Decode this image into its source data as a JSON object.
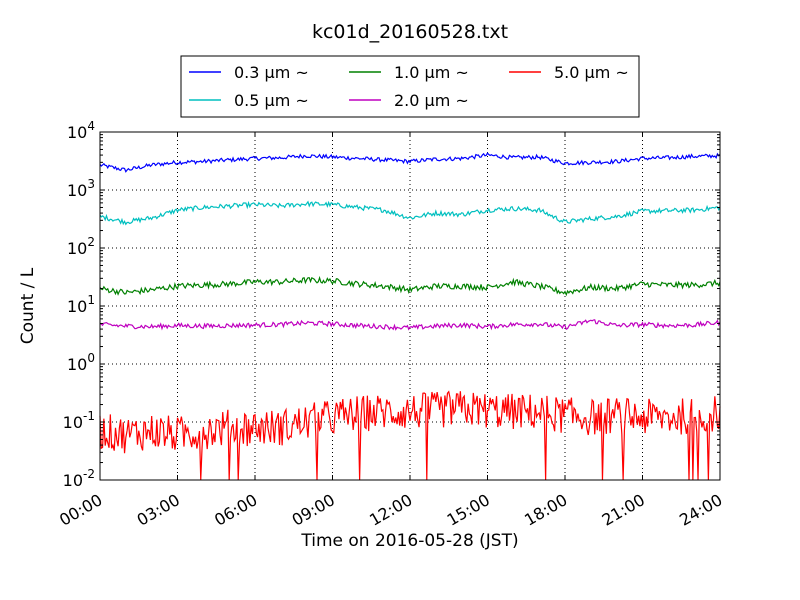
{
  "chart_data": {
    "type": "line",
    "title": "kc01d_20160528.txt",
    "xlabel": "Time on 2016-05-28 (JST)",
    "ylabel": "Count / L",
    "yscale": "log",
    "ylim": [
      0.01,
      10000
    ],
    "xlim": [
      "00:00",
      "24:00"
    ],
    "grid": true,
    "legend_position": "top",
    "x_ticks": [
      "00:00",
      "03:00",
      "06:00",
      "09:00",
      "12:00",
      "15:00",
      "18:00",
      "21:00",
      "24:00"
    ],
    "x_hours": [
      0,
      3,
      6,
      9,
      12,
      15,
      18,
      21,
      24
    ],
    "y_ticks": [
      {
        "value": 0.01,
        "base": "10",
        "exp": "-2"
      },
      {
        "value": 0.1,
        "base": "10",
        "exp": "-1"
      },
      {
        "value": 1,
        "base": "10",
        "exp": "0"
      },
      {
        "value": 10,
        "base": "10",
        "exp": "1"
      },
      {
        "value": 100,
        "base": "10",
        "exp": "2"
      },
      {
        "value": 1000,
        "base": "10",
        "exp": "3"
      },
      {
        "value": 10000,
        "base": "10",
        "exp": "4"
      }
    ],
    "series": [
      {
        "name": "0.3 μm ~",
        "color": "#0000ff",
        "x": [
          0,
          1,
          2,
          3,
          4,
          5,
          6,
          7,
          8,
          9,
          10,
          11,
          12,
          13,
          14,
          15,
          16,
          17,
          18,
          19,
          20,
          21,
          22,
          23,
          24
        ],
        "y": [
          2700,
          2200,
          2700,
          3000,
          3100,
          3300,
          3500,
          3600,
          3900,
          3700,
          3500,
          3300,
          3100,
          3400,
          3500,
          4000,
          3600,
          3700,
          2900,
          3000,
          3100,
          3500,
          3600,
          3800,
          3900
        ]
      },
      {
        "name": "0.5 μm ~",
        "color": "#00bfbf",
        "x": [
          0,
          1,
          2,
          3,
          4,
          5,
          6,
          7,
          8,
          9,
          10,
          11,
          12,
          13,
          14,
          15,
          16,
          17,
          18,
          19,
          20,
          21,
          22,
          23,
          24
        ],
        "y": [
          350,
          280,
          330,
          450,
          500,
          530,
          560,
          530,
          580,
          560,
          500,
          450,
          330,
          400,
          380,
          450,
          480,
          450,
          280,
          320,
          350,
          430,
          440,
          450,
          500
        ]
      },
      {
        "name": "1.0 μm ~",
        "color": "#008000",
        "x": [
          0,
          1,
          2,
          3,
          4,
          5,
          6,
          7,
          8,
          9,
          10,
          11,
          12,
          13,
          14,
          15,
          16,
          17,
          18,
          19,
          20,
          21,
          22,
          23,
          24
        ],
        "y": [
          20,
          17,
          19,
          22,
          23,
          24,
          26,
          26,
          28,
          27,
          24,
          22,
          19,
          22,
          22,
          21,
          26,
          22,
          17,
          21,
          20,
          24,
          23,
          23,
          25
        ]
      },
      {
        "name": "2.0 μm ~",
        "color": "#bf00bf",
        "x": [
          0,
          1,
          2,
          3,
          4,
          5,
          6,
          7,
          8,
          9,
          10,
          11,
          12,
          13,
          14,
          15,
          16,
          17,
          18,
          19,
          20,
          21,
          22,
          23,
          24
        ],
        "y": [
          4.8,
          4.5,
          4.4,
          4.6,
          4.5,
          4.6,
          4.7,
          4.8,
          5.1,
          4.9,
          4.6,
          4.4,
          4.2,
          4.5,
          4.7,
          4.4,
          4.8,
          4.9,
          4.3,
          5.6,
          4.6,
          4.8,
          4.6,
          4.7,
          5.2
        ]
      },
      {
        "name": "5.0 μm ~",
        "color": "#ff0000",
        "x": [
          0,
          1,
          2,
          3,
          4,
          5,
          6,
          7,
          8,
          9,
          10,
          11,
          12,
          13,
          14,
          15,
          16,
          17,
          18,
          19,
          20,
          21,
          22,
          23,
          24
        ],
        "y": [
          0.07,
          0.06,
          0.07,
          0.06,
          0.07,
          0.08,
          0.08,
          0.08,
          0.1,
          0.12,
          0.14,
          0.15,
          0.15,
          0.16,
          0.17,
          0.16,
          0.15,
          0.15,
          0.13,
          0.12,
          0.13,
          0.12,
          0.12,
          0.13,
          0.14
        ]
      }
    ]
  }
}
